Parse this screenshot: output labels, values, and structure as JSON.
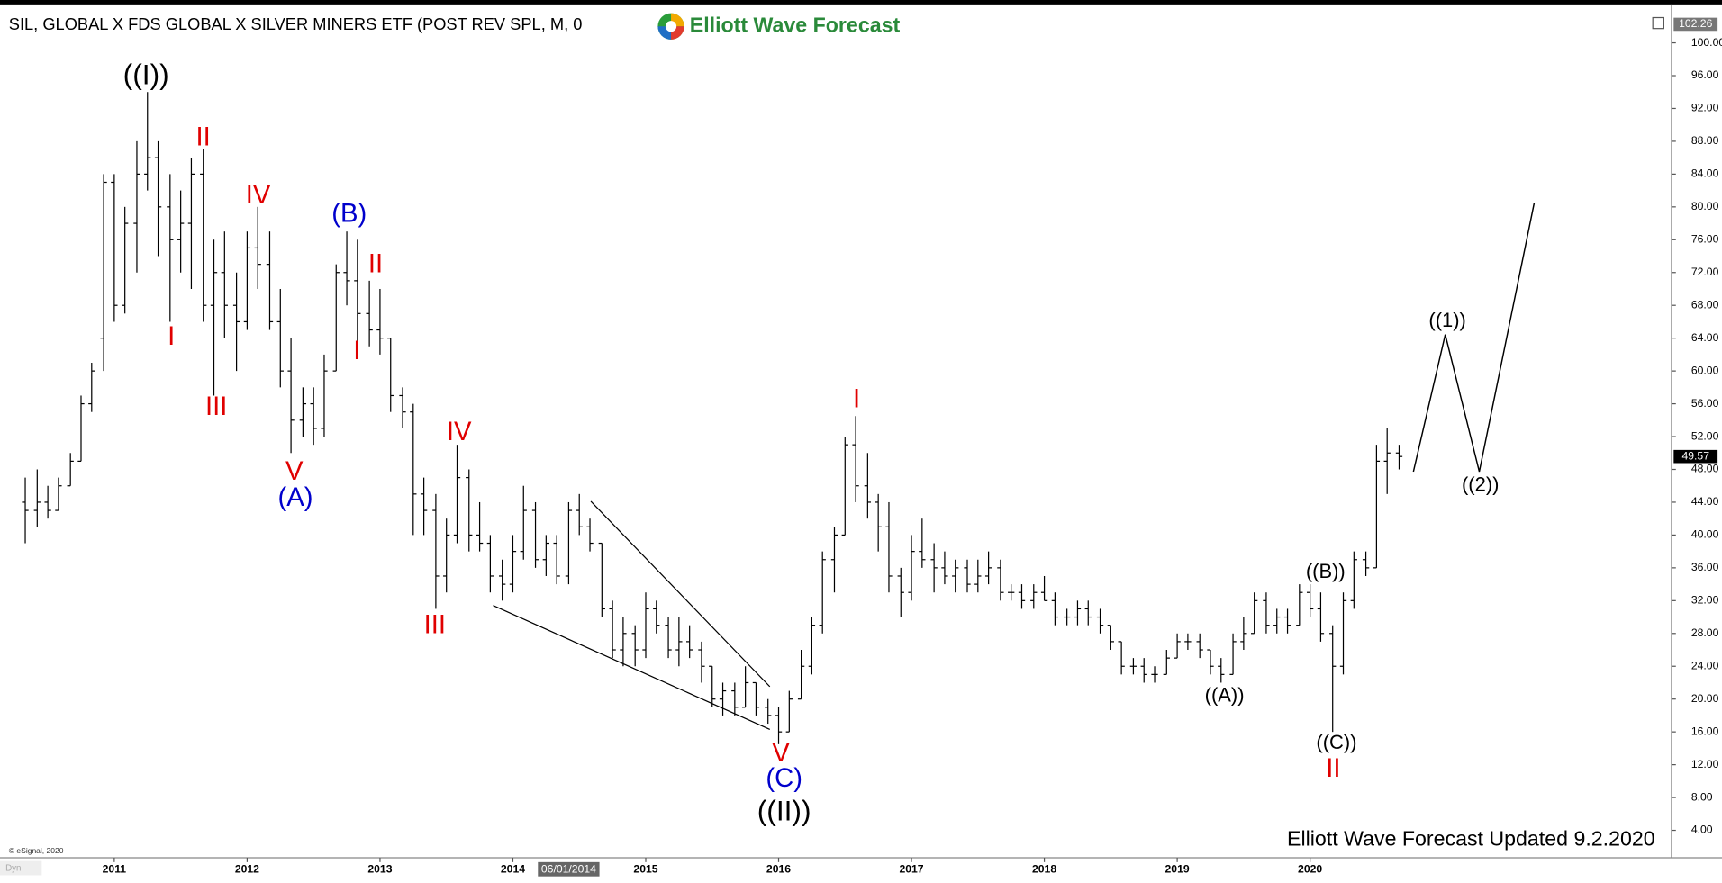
{
  "chart_data": {
    "type": "ohlc",
    "title": "SIL, GLOBAL X FDS GLOBAL X SILVER MINERS ETF (POST REV SPL, M, 0",
    "logo_text": "Elliott Wave Forecast",
    "footer": "Elliott Wave Forecast Updated 9.2.2020",
    "copyright": "© eSignal, 2020",
    "cursor_label": "06/01/2014",
    "corner_label": "Dyn",
    "color": "#000000",
    "x": [
      2010.33,
      2010.42,
      2010.5,
      2010.58,
      2010.67,
      2010.75,
      2010.83,
      2010.92,
      2011,
      2011.08,
      2011.17,
      2011.25,
      2011.33,
      2011.42,
      2011.5,
      2011.58,
      2011.67,
      2011.75,
      2011.83,
      2011.92,
      2012,
      2012.08,
      2012.17,
      2012.25,
      2012.33,
      2012.42,
      2012.5,
      2012.58,
      2012.67,
      2012.75,
      2012.83,
      2012.92,
      2013,
      2013.08,
      2013.17,
      2013.25,
      2013.33,
      2013.42,
      2013.5,
      2013.58,
      2013.67,
      2013.75,
      2013.83,
      2013.92,
      2014,
      2014.08,
      2014.17,
      2014.25,
      2014.33,
      2014.42,
      2014.5,
      2014.58,
      2014.67,
      2014.75,
      2014.83,
      2014.92,
      2015,
      2015.08,
      2015.17,
      2015.25,
      2015.33,
      2015.42,
      2015.5,
      2015.58,
      2015.67,
      2015.75,
      2015.83,
      2015.92,
      2016,
      2016.08,
      2016.17,
      2016.25,
      2016.33,
      2016.42,
      2016.5,
      2016.58,
      2016.67,
      2016.75,
      2016.83,
      2016.92,
      2017,
      2017.08,
      2017.17,
      2017.25,
      2017.33,
      2017.42,
      2017.5,
      2017.58,
      2017.67,
      2017.75,
      2017.83,
      2017.92,
      2018,
      2018.08,
      2018.17,
      2018.25,
      2018.33,
      2018.42,
      2018.5,
      2018.58,
      2018.67,
      2018.75,
      2018.83,
      2018.92,
      2019,
      2019.08,
      2019.17,
      2019.25,
      2019.33,
      2019.42,
      2019.5,
      2019.58,
      2019.67,
      2019.75,
      2019.83,
      2019.92,
      2020,
      2020.08,
      2020.17,
      2020.25,
      2020.33,
      2020.42,
      2020.5,
      2020.58,
      2020.67
    ],
    "open": [
      44,
      43,
      44,
      43,
      46,
      49,
      56,
      64,
      83,
      68,
      78,
      84,
      86,
      80,
      76,
      78,
      84,
      68,
      72,
      68,
      66,
      75,
      73,
      66,
      60,
      54,
      56,
      53,
      60,
      72,
      71,
      67,
      65,
      64,
      57,
      55,
      45,
      43,
      35,
      40,
      47,
      40,
      39,
      35,
      34,
      38,
      43,
      37,
      39,
      35,
      43,
      41,
      39,
      31,
      26,
      28,
      26,
      31,
      29,
      26,
      27,
      26,
      24,
      20,
      21,
      19,
      22,
      19,
      18,
      16,
      20,
      24,
      29,
      37,
      40,
      51,
      46,
      44,
      41,
      35,
      33,
      38,
      37,
      36,
      35,
      36,
      34,
      35,
      36,
      33,
      33,
      32,
      33,
      32,
      30,
      30,
      31,
      30,
      29,
      27,
      24,
      24,
      23,
      23,
      25,
      27,
      27,
      26,
      24,
      23,
      27,
      28,
      32,
      29,
      30,
      29,
      33,
      31,
      28,
      24,
      32,
      37,
      36,
      49,
      50
    ],
    "high": [
      47,
      48,
      46,
      47,
      50,
      57,
      61,
      84,
      84,
      80,
      88,
      94,
      88,
      84,
      82,
      86,
      87,
      76,
      77,
      72,
      77,
      80,
      77,
      70,
      64,
      58,
      58,
      62,
      73,
      77,
      76,
      71,
      70,
      64,
      58,
      56,
      47,
      45,
      42,
      51,
      48,
      44,
      40,
      37,
      40,
      46,
      44,
      40,
      40,
      44,
      45,
      42,
      39,
      32,
      30,
      29,
      33,
      32,
      30,
      30,
      29,
      27,
      24,
      22,
      22,
      24,
      22,
      20,
      19,
      21,
      26,
      30,
      38,
      41,
      52,
      54.5,
      50,
      45,
      44,
      36,
      40,
      42,
      39,
      38,
      37,
      37,
      37,
      38,
      37,
      34,
      34,
      34,
      35,
      33,
      31,
      32,
      32,
      31,
      29,
      27,
      25,
      25,
      24,
      26,
      28,
      28,
      28,
      26,
      25,
      28,
      30,
      33,
      33,
      31,
      31,
      34,
      34,
      33,
      29,
      33,
      38,
      38,
      51,
      53,
      51
    ],
    "low": [
      39,
      41,
      42,
      43,
      46,
      49,
      55,
      60,
      66,
      67,
      72,
      82,
      74,
      66,
      72,
      70,
      66,
      57,
      64,
      60,
      65,
      70,
      65,
      58,
      50,
      52,
      51,
      52,
      60,
      68,
      63,
      63,
      62,
      55,
      53,
      40,
      40,
      31,
      33,
      39,
      38,
      38,
      33,
      32,
      33,
      37,
      36,
      35,
      34,
      34,
      40,
      38,
      30,
      25,
      24,
      24,
      25,
      28,
      25,
      24,
      25,
      22,
      19,
      18,
      18,
      19,
      18,
      17,
      14.5,
      16,
      20,
      23,
      28,
      33,
      40,
      44,
      42,
      38,
      33,
      30,
      32,
      36,
      33,
      34,
      33,
      33,
      33,
      34,
      32,
      32,
      31,
      31,
      32,
      29,
      29,
      29,
      29,
      28,
      26,
      23,
      23,
      22,
      22,
      23,
      25,
      26,
      25,
      23,
      22,
      23,
      26,
      28,
      28,
      28,
      28,
      29,
      30,
      27,
      16,
      23,
      31,
      35,
      36,
      45,
      48
    ],
    "close": [
      43,
      44,
      43,
      46,
      49,
      56,
      60,
      83,
      68,
      78,
      84,
      86,
      80,
      76,
      78,
      84,
      68,
      72,
      68,
      66,
      75,
      73,
      66,
      60,
      54,
      56,
      53,
      60,
      72,
      71,
      67,
      65,
      64,
      57,
      55,
      45,
      43,
      35,
      40,
      47,
      40,
      39,
      35,
      34,
      38,
      43,
      37,
      39,
      35,
      43,
      41,
      39,
      31,
      26,
      28,
      26,
      31,
      29,
      26,
      27,
      26,
      24,
      20,
      21,
      19,
      22,
      19,
      18,
      16,
      20,
      24,
      29,
      37,
      40,
      51,
      46,
      44,
      41,
      35,
      33,
      38,
      37,
      36,
      35,
      36,
      34,
      35,
      36,
      33,
      33,
      32,
      33,
      32,
      30,
      30,
      31,
      30,
      29,
      27,
      24,
      24,
      23,
      23,
      25,
      27,
      27,
      26,
      24,
      23,
      27,
      28,
      32,
      29,
      30,
      29,
      33,
      31,
      28,
      24,
      32,
      37,
      36,
      49,
      50,
      49.57
    ],
    "last_price": 49.57,
    "top_price": 102.26,
    "xlim": [
      2010.14,
      2022.72
    ],
    "xticks": [
      2011,
      2012,
      2013,
      2014,
      2015,
      2016,
      2017,
      2018,
      2019,
      2020
    ],
    "ylim": [
      0.66,
      103.88
    ],
    "yticks": [
      {
        "value": 4,
        "label": "4.00"
      },
      {
        "value": 8,
        "label": "8.00"
      },
      {
        "value": 12,
        "label": "12.00"
      },
      {
        "value": 16,
        "label": "16.00"
      },
      {
        "value": 20,
        "label": "20.00"
      },
      {
        "value": 24,
        "label": "24.00"
      },
      {
        "value": 28,
        "label": "28.00"
      },
      {
        "value": 32,
        "label": "32.00"
      },
      {
        "value": 36,
        "label": "36.00"
      },
      {
        "value": 40,
        "label": "40.00"
      },
      {
        "value": 44,
        "label": "44.00"
      },
      {
        "value": 48,
        "label": "48.00"
      },
      {
        "value": 52,
        "label": "52.00"
      },
      {
        "value": 56,
        "label": "56.00"
      },
      {
        "value": 60,
        "label": "60.00"
      },
      {
        "value": 64,
        "label": "64.00"
      },
      {
        "value": 68,
        "label": "68.00"
      },
      {
        "value": 72,
        "label": "72.00"
      },
      {
        "value": 76,
        "label": "76.00"
      },
      {
        "value": 80,
        "label": "80.00"
      },
      {
        "value": 84,
        "label": "84.00"
      },
      {
        "value": 88,
        "label": "88.00"
      },
      {
        "value": 92,
        "label": "92.00"
      },
      {
        "value": 96,
        "label": "96.00"
      },
      {
        "value": 100,
        "label": "100.00"
      }
    ],
    "wave_labels": [
      {
        "text": "((I))",
        "color": "#000000"
      },
      {
        "text": "II",
        "color": "#e00000"
      },
      {
        "text": "I",
        "color": "#e00000"
      },
      {
        "text": "IV",
        "color": "#e00000"
      },
      {
        "text": "III",
        "color": "#e00000"
      },
      {
        "text": "(B)",
        "color": "#0000cc"
      },
      {
        "text": "II",
        "color": "#e00000"
      },
      {
        "text": "I",
        "color": "#e00000"
      },
      {
        "text": "V",
        "color": "#e00000"
      },
      {
        "text": "(A)",
        "color": "#0000cc"
      },
      {
        "text": "IV",
        "color": "#e00000"
      },
      {
        "text": "III",
        "color": "#e00000"
      },
      {
        "text": "I",
        "color": "#e00000"
      },
      {
        "text": "V",
        "color": "#e00000"
      },
      {
        "text": "(C)",
        "color": "#0000cc"
      },
      {
        "text": "((II))",
        "color": "#000000"
      },
      {
        "text": "((A))",
        "color": "#000000"
      },
      {
        "text": "((B))",
        "color": "#000000"
      },
      {
        "text": "((C))",
        "color": "#000000"
      },
      {
        "text": "II",
        "color": "#e00000"
      },
      {
        "text": "((1))",
        "color": "#000000"
      },
      {
        "text": "((2))",
        "color": "#000000"
      }
    ]
  }
}
